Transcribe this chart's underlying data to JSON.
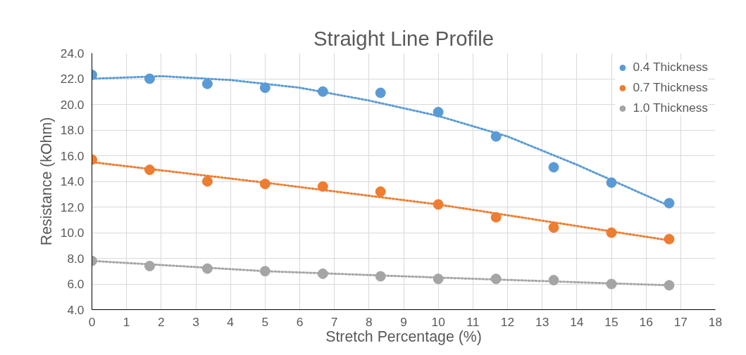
{
  "chart_data": {
    "type": "scatter",
    "title": "Straight Line Profile",
    "xlabel": "Stretch Percentage (%)",
    "ylabel": "Resistance (kOhm)",
    "x": [
      0,
      1.667,
      3.333,
      5,
      6.667,
      8.333,
      10,
      11.667,
      13.333,
      15,
      16.667
    ],
    "series": [
      {
        "name": "0.4 Thickness",
        "color": "#5b9bd5",
        "values": [
          22.3,
          22.0,
          21.6,
          21.3,
          21.0,
          20.9,
          19.4,
          17.5,
          15.1,
          13.9,
          12.3
        ]
      },
      {
        "name": "0.7 Thickness",
        "color": "#ed7d31",
        "values": [
          15.7,
          14.9,
          14.0,
          13.8,
          13.6,
          13.2,
          12.2,
          11.2,
          10.4,
          10.0,
          9.5
        ]
      },
      {
        "name": "1.0 Thickness",
        "color": "#a5a5a5",
        "values": [
          7.8,
          7.4,
          7.2,
          7.0,
          6.8,
          6.6,
          6.4,
          6.4,
          6.3,
          6.0,
          5.9
        ]
      },
      {
        "type": "line",
        "line_style": "dotted",
        "marker": "none",
        "color": "#5b9bd5",
        "x": [
          0,
          2,
          4,
          6,
          8,
          10,
          12,
          14,
          16.667
        ],
        "values": [
          22.0,
          22.2,
          21.9,
          21.3,
          20.3,
          19.1,
          17.5,
          15.3,
          12.1
        ]
      },
      {
        "type": "line",
        "line_style": "dotted",
        "marker": "none",
        "color": "#ed7d31",
        "x": [
          0,
          5,
          10,
          16.667
        ],
        "values": [
          15.5,
          13.9,
          12.2,
          9.4
        ]
      },
      {
        "type": "line",
        "line_style": "dotted",
        "marker": "none",
        "color": "#a5a5a5",
        "x": [
          0,
          5,
          10,
          16.667
        ],
        "values": [
          7.8,
          7.0,
          6.5,
          5.9
        ]
      }
    ],
    "marker": "circle",
    "grid": true,
    "legend": "top right",
    "xlim": [
      0,
      18
    ],
    "xticks": [
      0,
      1,
      2,
      3,
      4,
      5,
      6,
      7,
      8,
      9,
      10,
      11,
      12,
      13,
      14,
      15,
      16,
      17,
      18
    ],
    "ylim": [
      4,
      24
    ],
    "yticks": [
      {
        "value": 4,
        "label": "4.0"
      },
      {
        "value": 6,
        "label": "6.0"
      },
      {
        "value": 8,
        "label": "8.0"
      },
      {
        "value": 10,
        "label": "10.0"
      },
      {
        "value": 12,
        "label": "12.0"
      },
      {
        "value": 14,
        "label": "14.0"
      },
      {
        "value": 16,
        "label": "16.0"
      },
      {
        "value": 18,
        "label": "18.0"
      },
      {
        "value": 20,
        "label": "20.0"
      },
      {
        "value": 22,
        "label": "22.0"
      },
      {
        "value": 24,
        "label": "24.0"
      }
    ]
  }
}
